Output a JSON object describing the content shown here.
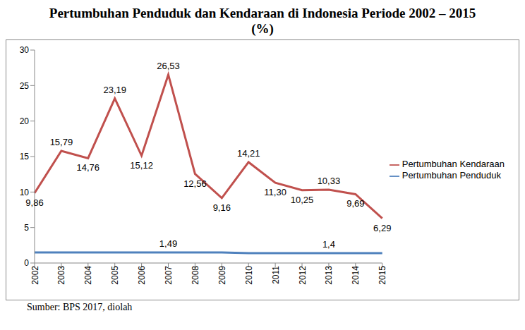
{
  "chart_data": {
    "type": "line",
    "title": "Pertumbuhan Penduduk dan Kendaraan di Indonesia Periode 2002 – 2015",
    "subtitle": "(%)",
    "source": "Sumber: BPS 2017, diolah",
    "categories": [
      "2002",
      "2003",
      "2004",
      "2005",
      "2006",
      "2007",
      "2008",
      "2009",
      "2010",
      "2011",
      "2012",
      "2013",
      "2014",
      "2015"
    ],
    "series": [
      {
        "name": "Pertumbuhan Kendaraan",
        "color": "#c0504d",
        "values": [
          9.86,
          15.79,
          14.76,
          23.19,
          15.12,
          26.53,
          12.56,
          9.16,
          14.21,
          11.3,
          10.25,
          10.33,
          9.69,
          6.29
        ],
        "value_labels": [
          "9,86",
          "15,79",
          "14,76",
          "23,19",
          "15,12",
          "26,53",
          "12,56",
          "9,16",
          "14,21",
          "11,30",
          "10,25",
          "10,33",
          "9,69",
          "6,29"
        ]
      },
      {
        "name": "Pertumbuhan Penduduk",
        "color": "#4f81bd",
        "values": [
          1.49,
          1.49,
          1.49,
          1.49,
          1.49,
          1.49,
          1.49,
          1.49,
          1.4,
          1.4,
          1.4,
          1.4,
          1.4,
          1.4
        ],
        "value_labels": [
          null,
          null,
          null,
          null,
          null,
          "1,49",
          null,
          null,
          null,
          null,
          null,
          "1,4",
          null,
          null
        ]
      }
    ],
    "ylim": [
      0,
      30
    ],
    "yticks": [
      0,
      5,
      10,
      15,
      20,
      25,
      30
    ],
    "grid": false,
    "legend": "right",
    "data_labels": true
  }
}
